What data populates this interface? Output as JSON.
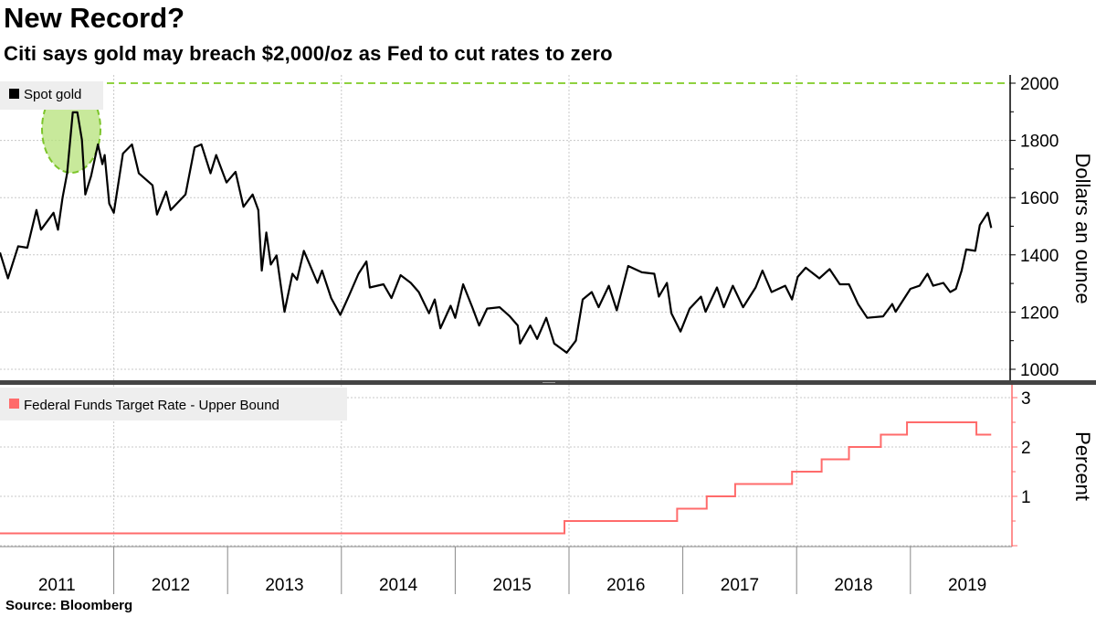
{
  "header": {
    "title": "New Record?",
    "subtitle": "Citi says gold may breach $2,000/oz as Fed to cut rates to zero"
  },
  "footer": {
    "source": "Source: Bloomberg"
  },
  "colors": {
    "gold": "#000000",
    "fed": "#ff6b6b",
    "reference": "#8fd13f",
    "highlight": "#b5e27a"
  },
  "chart_data": [
    {
      "type": "line",
      "panel": "top",
      "legend": [
        "Spot gold"
      ],
      "legend_placement": "top-left",
      "ylabel": "Dollars an ounce",
      "ylim": [
        962,
        2029
      ],
      "yticks": [
        1000,
        1200,
        1400,
        1600,
        1800,
        2000
      ],
      "y_axis_side": "right",
      "grid": true,
      "reference_line": {
        "y": 2000,
        "style": "dashed",
        "color": "#8fd13f"
      },
      "highlight": {
        "shape": "ellipse",
        "around": "2011 peak near 1900"
      },
      "series": [
        {
          "name": "Spot gold",
          "color": "#000000",
          "x": [
            2011.0,
            2011.07,
            2011.16,
            2011.24,
            2011.32,
            2011.36,
            2011.47,
            2011.51,
            2011.55,
            2011.59,
            2011.64,
            2011.68,
            2011.72,
            2011.75,
            2011.8,
            2011.86,
            2011.9,
            2011.92,
            2011.96,
            2012.0,
            2012.08,
            2012.16,
            2012.22,
            2012.34,
            2012.38,
            2012.46,
            2012.5,
            2012.63,
            2012.71,
            2012.77,
            2012.85,
            2012.9,
            2012.99,
            2013.07,
            2013.14,
            2013.22,
            2013.27,
            2013.3,
            2013.34,
            2013.38,
            2013.43,
            2013.5,
            2013.57,
            2013.61,
            2013.67,
            2013.79,
            2013.83,
            2013.91,
            2013.99,
            2014.07,
            2014.15,
            2014.22,
            2014.25,
            2014.37,
            2014.44,
            2014.52,
            2014.61,
            2014.68,
            2014.77,
            2014.82,
            2014.87,
            2014.96,
            2015.0,
            2015.07,
            2015.15,
            2015.21,
            2015.28,
            2015.39,
            2015.48,
            2015.55,
            2015.57,
            2015.66,
            2015.72,
            2015.8,
            2015.87,
            2015.98,
            2016.06,
            2016.12,
            2016.2,
            2016.26,
            2016.35,
            2016.42,
            2016.52,
            2016.64,
            2016.75,
            2016.79,
            2016.86,
            2016.9,
            2016.98,
            2017.06,
            2017.16,
            2017.2,
            2017.3,
            2017.36,
            2017.44,
            2017.53,
            2017.64,
            2017.7,
            2017.78,
            2017.9,
            2017.96,
            2018.01,
            2018.08,
            2018.2,
            2018.29,
            2018.38,
            2018.46,
            2018.54,
            2018.62,
            2018.76,
            2018.84,
            2018.87,
            2019.0,
            2019.08,
            2019.15,
            2019.2,
            2019.29,
            2019.35,
            2019.4,
            2019.45,
            2019.49,
            2019.57,
            2019.61,
            2019.68,
            2019.71
          ],
          "y": [
            1408,
            1318,
            1430,
            1425,
            1557,
            1488,
            1547,
            1488,
            1600,
            1685,
            1898,
            1898,
            1802,
            1611,
            1675,
            1786,
            1717,
            1749,
            1579,
            1547,
            1754,
            1786,
            1685,
            1643,
            1541,
            1621,
            1557,
            1611,
            1776,
            1786,
            1685,
            1749,
            1653,
            1690,
            1568,
            1611,
            1557,
            1345,
            1478,
            1366,
            1398,
            1201,
            1334,
            1313,
            1414,
            1302,
            1345,
            1249,
            1190,
            1260,
            1334,
            1377,
            1286,
            1297,
            1249,
            1329,
            1302,
            1270,
            1196,
            1244,
            1143,
            1222,
            1180,
            1297,
            1217,
            1153,
            1212,
            1217,
            1185,
            1153,
            1090,
            1153,
            1106,
            1180,
            1090,
            1058,
            1100,
            1244,
            1270,
            1217,
            1292,
            1206,
            1361,
            1339,
            1334,
            1254,
            1302,
            1196,
            1132,
            1212,
            1254,
            1201,
            1286,
            1217,
            1292,
            1217,
            1286,
            1345,
            1270,
            1292,
            1244,
            1323,
            1355,
            1318,
            1350,
            1297,
            1297,
            1228,
            1180,
            1185,
            1228,
            1201,
            1281,
            1292,
            1334,
            1292,
            1302,
            1270,
            1281,
            1345,
            1419,
            1414,
            1504,
            1547,
            1494
          ]
        }
      ]
    },
    {
      "type": "line",
      "panel": "bottom",
      "legend": [
        "Federal Funds Target Rate - Upper Bound"
      ],
      "legend_placement": "top-left",
      "ylabel": "Percent",
      "ylim": [
        0,
        3.2
      ],
      "yticks": [
        1,
        2,
        3
      ],
      "y_axis_side": "right",
      "grid": true,
      "step": true,
      "series": [
        {
          "name": "Federal Funds Target Rate - Upper Bound",
          "color": "#ff6b6b",
          "x": [
            2011.0,
            2015.96,
            2016.95,
            2017.21,
            2017.46,
            2017.96,
            2018.22,
            2018.46,
            2018.74,
            2018.97,
            2019.58,
            2019.71
          ],
          "y": [
            0.25,
            0.5,
            0.75,
            1.0,
            1.25,
            1.5,
            1.75,
            2.0,
            2.25,
            2.5,
            2.25,
            2.25
          ]
        }
      ]
    }
  ],
  "x_axis": {
    "tick_labels": [
      "2011",
      "2012",
      "2013",
      "2014",
      "2015",
      "2016",
      "2017",
      "2018",
      "2019"
    ],
    "xlim": [
      2011.0,
      2019.9
    ]
  }
}
